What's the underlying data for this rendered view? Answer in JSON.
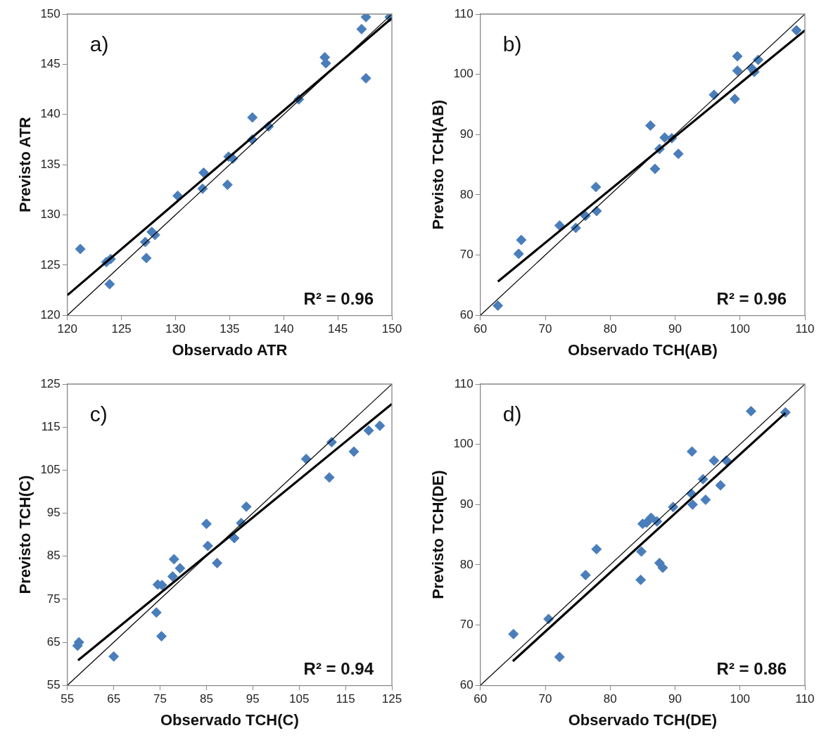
{
  "chart_data": [
    {
      "type": "scatter",
      "xlabel": "Observado ATR",
      "ylabel": "Previsto ATR",
      "annotations": [
        "a)",
        "R² = 0.96"
      ],
      "xlim": [
        120,
        150
      ],
      "ylim": [
        120,
        150
      ],
      "xticks": [
        120,
        125,
        130,
        135,
        140,
        145,
        150
      ],
      "yticks": [
        120,
        125,
        130,
        135,
        140,
        145,
        150
      ],
      "grid": false,
      "legend": false,
      "series": [
        {
          "type": "scatter",
          "marker": "diamond",
          "color": "#4a7ebb",
          "x": [
            121.2,
            123.6,
            124,
            123.9,
            127.2,
            127.3,
            127.8,
            128.1,
            130.2,
            132.5,
            132.6,
            134.8,
            134.9,
            135.3,
            137.1,
            137.1,
            138.6,
            141.4,
            143.8,
            143.9,
            147.2,
            147.6,
            147.6,
            149.8
          ],
          "values": [
            126.6,
            125.3,
            125.6,
            123.1,
            127.3,
            125.7,
            128.3,
            128,
            131.9,
            132.6,
            134.2,
            133,
            135.8,
            135.6,
            139.7,
            137.5,
            138.8,
            141.5,
            145.7,
            145.1,
            148.5,
            149.7,
            143.6,
            149.7
          ]
        },
        {
          "type": "line",
          "color": "#000000",
          "x": [
            120,
            150
          ],
          "values": [
            122,
            149.6
          ]
        },
        {
          "type": "line",
          "color": "#000000",
          "x": [
            120,
            150
          ],
          "values": [
            120,
            150
          ]
        }
      ]
    },
    {
      "type": "scatter",
      "xlabel": "Observado TCH(AB)",
      "ylabel": "Previsto TCH(AB)",
      "annotations": [
        "b)",
        "R² = 0.96"
      ],
      "xlim": [
        60,
        110
      ],
      "ylim": [
        60,
        110
      ],
      "xticks": [
        60,
        70,
        80,
        90,
        100,
        110
      ],
      "yticks": [
        60,
        70,
        80,
        90,
        100,
        110
      ],
      "grid": false,
      "legend": false,
      "series": [
        {
          "type": "scatter",
          "marker": "diamond",
          "color": "#4a7ebb",
          "x": [
            62.7,
            65.9,
            66.3,
            72.2,
            74.7,
            76.2,
            77.8,
            77.9,
            86.2,
            86.9,
            87.6,
            88.4,
            89.5,
            90.5,
            96,
            99.2,
            99.6,
            99.6,
            101.8,
            102.2,
            102.8,
            108.7
          ],
          "values": [
            61.6,
            70.2,
            72.5,
            74.9,
            74.5,
            76.5,
            81.3,
            77.3,
            91.5,
            84.3,
            87.6,
            89.5,
            89.4,
            86.8,
            96.6,
            95.9,
            100.6,
            103,
            101,
            100.4,
            102.4,
            107.3
          ]
        },
        {
          "type": "line",
          "color": "#000000",
          "x": [
            62.7,
            110
          ],
          "values": [
            65.6,
            107.3
          ]
        },
        {
          "type": "line",
          "color": "#000000",
          "x": [
            60,
            110
          ],
          "values": [
            60,
            110
          ]
        }
      ]
    },
    {
      "type": "scatter",
      "xlabel": "Observado TCH(C)",
      "ylabel": "Previsto TCH(C)",
      "annotations": [
        "c)",
        "R² = 0.94"
      ],
      "xlim": [
        55,
        125
      ],
      "ylim": [
        55,
        125
      ],
      "xticks": [
        55,
        65,
        75,
        85,
        95,
        105,
        115,
        125
      ],
      "yticks": [
        55,
        65,
        75,
        85,
        95,
        105,
        115,
        125
      ],
      "grid": false,
      "legend": false,
      "series": [
        {
          "type": "scatter",
          "marker": "diamond",
          "color": "#4a7ebb",
          "x": [
            57.2,
            57.5,
            65,
            74.2,
            74.5,
            75.4,
            75.3,
            77.7,
            78,
            79.3,
            85,
            85.3,
            87.3,
            91,
            92.5,
            93.6,
            106.5,
            111.5,
            112,
            116.8,
            120,
            122.4
          ],
          "values": [
            64.2,
            65,
            61.7,
            71.9,
            78.4,
            78.3,
            66.4,
            80.3,
            84.3,
            82.2,
            92.5,
            87.4,
            83.4,
            89.2,
            92.7,
            96.5,
            107.6,
            103.3,
            111.5,
            109.3,
            114.2,
            115.3
          ]
        },
        {
          "type": "line",
          "color": "#000000",
          "x": [
            57.3,
            125
          ],
          "values": [
            60.8,
            120.4
          ]
        },
        {
          "type": "line",
          "color": "#000000",
          "x": [
            55,
            125
          ],
          "values": [
            55,
            125
          ]
        }
      ]
    },
    {
      "type": "scatter",
      "xlabel": "Observado TCH(DE)",
      "ylabel": "Previsto TCH(DE)",
      "annotations": [
        "d)",
        "R² = 0.86"
      ],
      "xlim": [
        60,
        110
      ],
      "ylim": [
        60,
        110
      ],
      "xticks": [
        60,
        70,
        80,
        90,
        100,
        110
      ],
      "yticks": [
        60,
        70,
        80,
        90,
        100,
        110
      ],
      "grid": false,
      "legend": false,
      "series": [
        {
          "type": "scatter",
          "marker": "diamond",
          "color": "#4a7ebb",
          "x": [
            65.1,
            70.5,
            72.2,
            76.2,
            77.9,
            84.7,
            84.8,
            85,
            85.6,
            86.3,
            87.2,
            87.6,
            88.1,
            89.7,
            92.6,
            92.5,
            92.7,
            94.3,
            94.7,
            96,
            97,
            97.9,
            101.7,
            107
          ],
          "values": [
            68.5,
            71,
            64.7,
            78.3,
            82.6,
            77.5,
            82.2,
            86.8,
            87,
            87.8,
            87.2,
            80.3,
            79.5,
            89.6,
            98.8,
            91.8,
            90,
            94.2,
            90.8,
            97.3,
            93.2,
            97.3,
            105.5,
            105.3
          ]
        },
        {
          "type": "line",
          "color": "#000000",
          "x": [
            65,
            107
          ],
          "values": [
            64,
            105.2
          ]
        },
        {
          "type": "line",
          "color": "#000000",
          "x": [
            60,
            110
          ],
          "values": [
            60,
            110
          ]
        }
      ]
    }
  ]
}
